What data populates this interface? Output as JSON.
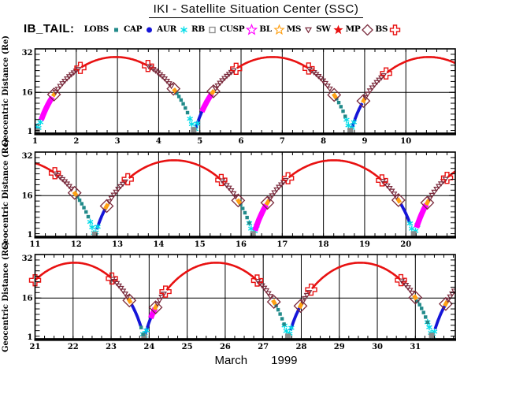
{
  "title": "IKI - Satellite Situation Center (SSC)",
  "mission_label": "IB_TAIL:",
  "caption": {
    "month": "March",
    "year": "1999"
  },
  "legend": [
    {
      "label": "LOBS",
      "marker": "square-filled",
      "color": "#218a8a",
      "size": 5
    },
    {
      "label": "CAP",
      "marker": "circle-filled",
      "color": "#1515d8",
      "size": 7
    },
    {
      "label": "AUR",
      "marker": "asterisk",
      "color": "#00dce8",
      "size": 9
    },
    {
      "label": "RB",
      "marker": "square-open",
      "color": "#8a8a8a",
      "size": 7
    },
    {
      "label": "CUSP",
      "marker": "star-open",
      "color": "#ff00ff",
      "size": 13
    },
    {
      "label": "BL",
      "marker": "star-open",
      "color": "#ffa014",
      "size": 12
    },
    {
      "label": "MS",
      "marker": "triangle-down-open",
      "color": "#7a2a3c",
      "size": 7
    },
    {
      "label": "SW",
      "marker": "star-filled",
      "color": "#e81111",
      "size": 10
    },
    {
      "label": "MP",
      "marker": "diamond-open",
      "color": "#7a2a3c",
      "size": 13
    },
    {
      "label": "BS",
      "marker": "plus-open",
      "color": "#e81111",
      "size": 12
    }
  ],
  "chart_data": {
    "type": "line",
    "title": "IKI - Satellite Situation Center (SSC)",
    "satellite": "IB_TAIL",
    "xlabel": "March 1999",
    "ylabel": "Geocentric Distance (Re)",
    "ylim": [
      1,
      32
    ],
    "y_ticks": [
      {
        "v": 32,
        "label": "32"
      },
      {
        "v": 16,
        "label": "16"
      },
      {
        "v": 1,
        "label": "1"
      }
    ],
    "grid": "vertical-per-day-and-horizontal-at-16",
    "panels": [
      {
        "name": "panel-1",
        "day_start": 1,
        "day_end": 11.2,
        "x_ticks": [
          1,
          2,
          3,
          4,
          5,
          6,
          7,
          8,
          9,
          10
        ]
      },
      {
        "name": "panel-2",
        "day_start": 11,
        "day_end": 21.2,
        "x_ticks": [
          11,
          12,
          13,
          14,
          15,
          16,
          17,
          18,
          19,
          20
        ]
      },
      {
        "name": "panel-3",
        "day_start": 21,
        "day_end": 32.05,
        "x_ticks": [
          21,
          22,
          23,
          24,
          25,
          26,
          27,
          28,
          29,
          30,
          31
        ]
      }
    ],
    "orbit": {
      "period_days": 3.8,
      "perigee_times": [
        1.05,
        4.87,
        8.66,
        12.45,
        16.3,
        20.2,
        23.87,
        27.66,
        31.45
      ],
      "apogee_times": [
        2.96,
        6.76,
        10.55,
        14.37,
        18.25,
        22.03,
        25.76,
        29.55
      ],
      "perigee_re": 1.8,
      "apogee_re": 29,
      "eccentricity": 0.88
    },
    "region_colors": {
      "LOBS": "#218a8a",
      "CAP": "#1515d8",
      "AUR": "#00dce8",
      "RB": "#8a8a8a",
      "CUSP": "#ff00ff",
      "BL": "#ffa014",
      "MS": "#7a2a3c",
      "SW": "#e81111",
      "MP": "#7a2a3c",
      "BS": "#e81111"
    },
    "segments": [
      {
        "type": "CAP",
        "from": 0.96,
        "to": 1.08
      },
      {
        "type": "CAP",
        "from": 4.9,
        "to": 5.06
      },
      {
        "type": "CAP",
        "from": 8.7,
        "to": 8.94
      },
      {
        "type": "CAP",
        "from": 12.5,
        "to": 12.7
      },
      {
        "type": "CAP",
        "from": 19.88,
        "to": 20.1
      },
      {
        "type": "CAP",
        "from": 23.54,
        "to": 23.78
      },
      {
        "type": "CAP",
        "from": 23.9,
        "to": 24.04
      },
      {
        "type": "CAP",
        "from": 27.72,
        "to": 27.95
      },
      {
        "type": "CAP",
        "from": 31.52,
        "to": 31.77
      },
      {
        "type": "AUR",
        "from": 0.95,
        "to": 1.14
      },
      {
        "type": "AUR",
        "from": 4.76,
        "to": 4.94
      },
      {
        "type": "AUR",
        "from": 8.56,
        "to": 8.74
      },
      {
        "type": "AUR",
        "from": 12.34,
        "to": 12.54
      },
      {
        "type": "AUR",
        "from": 16.2,
        "to": 16.4
      },
      {
        "type": "AUR",
        "from": 20.1,
        "to": 20.3
      },
      {
        "type": "AUR",
        "from": 23.84,
        "to": 23.97
      },
      {
        "type": "AUR",
        "from": 27.56,
        "to": 27.75
      },
      {
        "type": "AUR",
        "from": 31.32,
        "to": 31.54
      },
      {
        "type": "RB",
        "from": 1.0,
        "to": 1.1
      },
      {
        "type": "RB",
        "from": 4.8,
        "to": 4.9
      },
      {
        "type": "RB",
        "from": 8.6,
        "to": 8.7
      },
      {
        "type": "RB",
        "from": 12.4,
        "to": 12.5
      },
      {
        "type": "RB",
        "from": 16.24,
        "to": 16.34
      },
      {
        "type": "RB",
        "from": 20.14,
        "to": 20.24
      },
      {
        "type": "RB",
        "from": 23.82,
        "to": 23.91
      },
      {
        "type": "RB",
        "from": 27.6,
        "to": 27.7
      },
      {
        "type": "RB",
        "from": 31.38,
        "to": 31.48
      },
      {
        "type": "LOBS",
        "from": 4.44,
        "to": 4.74
      },
      {
        "type": "LOBS",
        "from": 8.32,
        "to": 8.56
      },
      {
        "type": "LOBS",
        "from": 12.03,
        "to": 12.34
      },
      {
        "type": "LOBS",
        "from": 15.99,
        "to": 16.2
      },
      {
        "type": "LOBS",
        "from": 23.79,
        "to": 23.86
      },
      {
        "type": "LOBS",
        "from": 27.34,
        "to": 27.56
      },
      {
        "type": "LOBS",
        "from": 31.06,
        "to": 31.32
      },
      {
        "type": "CUSP",
        "from": 1.15,
        "to": 1.42
      },
      {
        "type": "CUSP",
        "from": 5.05,
        "to": 5.29
      },
      {
        "type": "CUSP",
        "from": 16.34,
        "to": 16.61
      },
      {
        "type": "CUSP",
        "from": 20.26,
        "to": 20.5
      },
      {
        "type": "CUSP",
        "from": 24.04,
        "to": 24.16
      },
      {
        "type": "BL",
        "from": 1.43,
        "to": 1.49
      },
      {
        "type": "BL",
        "from": 4.36,
        "to": 4.43
      },
      {
        "type": "BL",
        "from": 5.28,
        "to": 5.35
      },
      {
        "type": "BL",
        "from": 8.24,
        "to": 8.31
      },
      {
        "type": "BL",
        "from": 8.95,
        "to": 9.01
      },
      {
        "type": "BL",
        "from": 11.94,
        "to": 12.01
      },
      {
        "type": "BL",
        "from": 12.7,
        "to": 12.77
      },
      {
        "type": "BL",
        "from": 15.91,
        "to": 15.98
      },
      {
        "type": "BL",
        "from": 16.61,
        "to": 16.68
      },
      {
        "type": "BL",
        "from": 19.79,
        "to": 19.86
      },
      {
        "type": "BL",
        "from": 20.49,
        "to": 20.56
      },
      {
        "type": "BL",
        "from": 23.45,
        "to": 23.52
      },
      {
        "type": "BL",
        "from": 24.14,
        "to": 24.21
      },
      {
        "type": "BL",
        "from": 27.25,
        "to": 27.32
      },
      {
        "type": "BL",
        "from": 27.95,
        "to": 28.02
      },
      {
        "type": "BL",
        "from": 30.96,
        "to": 31.03
      },
      {
        "type": "BL",
        "from": 31.77,
        "to": 31.84
      },
      {
        "type": "MS",
        "from": 1.5,
        "to": 2.06
      },
      {
        "type": "MS",
        "from": 3.76,
        "to": 4.32
      },
      {
        "type": "MS",
        "from": 5.38,
        "to": 5.86
      },
      {
        "type": "MS",
        "from": 7.66,
        "to": 8.2
      },
      {
        "type": "MS",
        "from": 9.02,
        "to": 9.5
      },
      {
        "type": "MS",
        "from": 11.5,
        "to": 11.92
      },
      {
        "type": "MS",
        "from": 12.8,
        "to": 13.22
      },
      {
        "type": "MS",
        "from": 15.54,
        "to": 15.9
      },
      {
        "type": "MS",
        "from": 16.7,
        "to": 17.12
      },
      {
        "type": "MS",
        "from": 19.44,
        "to": 19.78
      },
      {
        "type": "MS",
        "from": 20.58,
        "to": 20.98
      },
      {
        "type": "MS",
        "from": 23.04,
        "to": 23.44
      },
      {
        "type": "MS",
        "from": 24.22,
        "to": 24.41
      },
      {
        "type": "MS",
        "from": 26.86,
        "to": 27.24
      },
      {
        "type": "MS",
        "from": 28.04,
        "to": 28.24
      },
      {
        "type": "MS",
        "from": 30.64,
        "to": 30.95
      },
      {
        "type": "MS",
        "from": 31.86,
        "to": 32.05
      },
      {
        "type": "SW",
        "from": 2.12,
        "to": 3.72
      },
      {
        "type": "SW",
        "from": 5.9,
        "to": 7.62
      },
      {
        "type": "SW",
        "from": 9.54,
        "to": 11.46
      },
      {
        "type": "SW",
        "from": 13.28,
        "to": 15.5
      },
      {
        "type": "SW",
        "from": 17.16,
        "to": 19.4
      },
      {
        "type": "SW",
        "from": 21.02,
        "to": 23.0
      },
      {
        "type": "SW",
        "from": 24.46,
        "to": 26.82
      },
      {
        "type": "SW",
        "from": 28.28,
        "to": 30.6
      }
    ],
    "crossings": [
      {
        "type": "BS",
        "at": 2.1
      },
      {
        "type": "BS",
        "at": 3.74
      },
      {
        "type": "BS",
        "at": 5.88
      },
      {
        "type": "BS",
        "at": 7.64
      },
      {
        "type": "BS",
        "at": 9.52
      },
      {
        "type": "BS",
        "at": 11.48
      },
      {
        "type": "BS",
        "at": 13.25
      },
      {
        "type": "BS",
        "at": 15.52
      },
      {
        "type": "BS",
        "at": 17.14
      },
      {
        "type": "BS",
        "at": 19.42
      },
      {
        "type": "BS",
        "at": 21.0
      },
      {
        "type": "BS",
        "at": 23.02
      },
      {
        "type": "BS",
        "at": 24.43
      },
      {
        "type": "BS",
        "at": 26.84
      },
      {
        "type": "BS",
        "at": 28.26
      },
      {
        "type": "BS",
        "at": 30.62
      },
      {
        "type": "MP",
        "at": 1.46
      },
      {
        "type": "MP",
        "at": 4.36
      },
      {
        "type": "MP",
        "at": 5.33
      },
      {
        "type": "MP",
        "at": 8.26
      },
      {
        "type": "MP",
        "at": 8.97
      },
      {
        "type": "MP",
        "at": 11.96
      },
      {
        "type": "MP",
        "at": 12.74
      },
      {
        "type": "MP",
        "at": 15.93
      },
      {
        "type": "MP",
        "at": 16.64
      },
      {
        "type": "MP",
        "at": 19.82
      },
      {
        "type": "MP",
        "at": 20.52
      },
      {
        "type": "MP",
        "at": 23.48
      },
      {
        "type": "MP",
        "at": 24.17
      },
      {
        "type": "MP",
        "at": 27.28
      },
      {
        "type": "MP",
        "at": 27.98
      },
      {
        "type": "MP",
        "at": 31.0
      },
      {
        "type": "MP",
        "at": 31.8
      }
    ]
  }
}
